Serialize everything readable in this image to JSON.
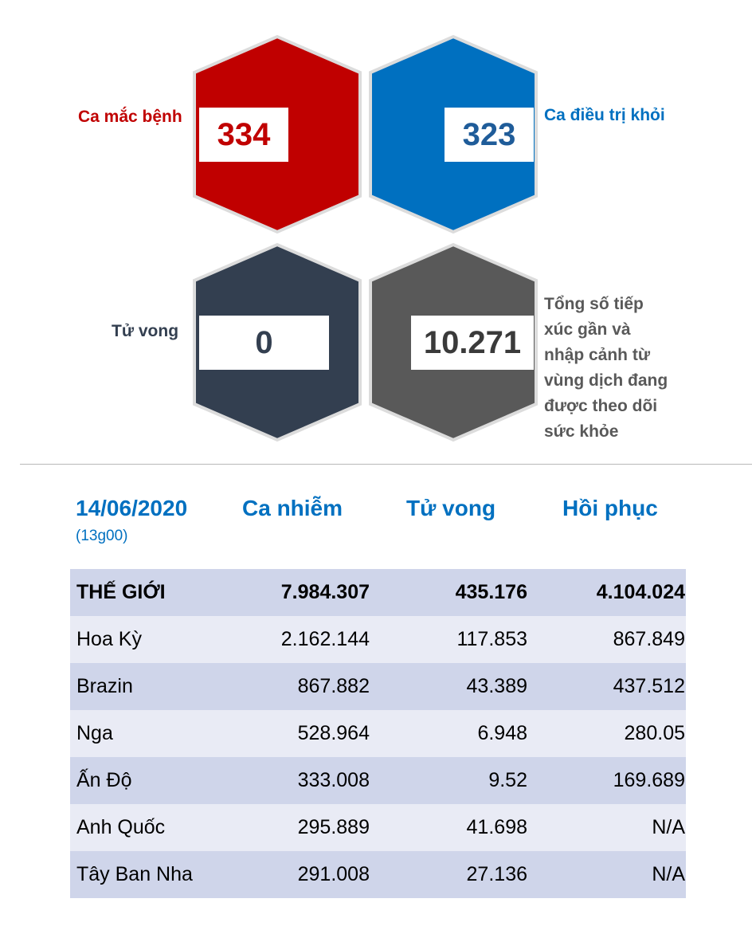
{
  "stats": {
    "cases": {
      "label": "Ca mắc bệnh",
      "value": "334",
      "color": "#c00000"
    },
    "recovered": {
      "label": "Ca điều trị khỏi",
      "value": "323",
      "color": "#0070c0"
    },
    "deaths": {
      "label": "Tử vong",
      "value": "0",
      "color": "#333f50"
    },
    "monitored": {
      "label": "Tổng số tiếp xúc gần và nhập cảnh từ vùng dịch đang được theo dõi sức khỏe",
      "label_lines": [
        "Tổng số tiếp",
        "xúc gần và",
        "nhập cảnh từ",
        "vùng dịch đang",
        "được theo dõi",
        "sức khỏe"
      ],
      "value": "10.271",
      "color": "#595959"
    }
  },
  "table": {
    "date": "14/06/2020",
    "time": "(13g00)",
    "headers": [
      "Ca nhiễm",
      "Tử vong",
      "Hồi phục"
    ],
    "rows": [
      {
        "name": "THẾ GIỚI",
        "cases": "7.984.307",
        "deaths": "435.176",
        "recovered": "4.104.024"
      },
      {
        "name": "Hoa Kỳ",
        "cases": "2.162.144",
        "deaths": "117.853",
        "recovered": "867.849"
      },
      {
        "name": "Brazin",
        "cases": "867.882",
        "deaths": "43.389",
        "recovered": "437.512"
      },
      {
        "name": "Nga",
        "cases": "528.964",
        "deaths": "6.948",
        "recovered": "280.05"
      },
      {
        "name": "Ấn Độ",
        "cases": "333.008",
        "deaths": "9.52",
        "recovered": "169.689"
      },
      {
        "name": "Anh Quốc",
        "cases": "295.889",
        "deaths": "41.698",
        "recovered": "N/A"
      },
      {
        "name": "Tây Ban Nha",
        "cases": "291.008",
        "deaths": "27.136",
        "recovered": "N/A"
      }
    ]
  }
}
